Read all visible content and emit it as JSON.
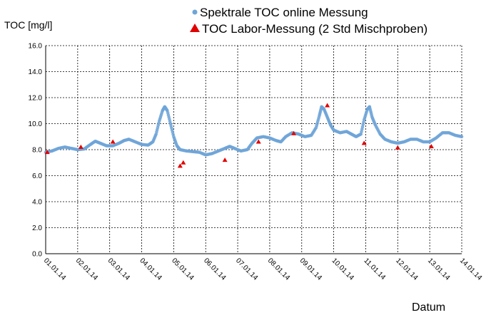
{
  "chart_data": {
    "type": "scatter",
    "ylabel": "TOC [mg/l]",
    "xlabel": "Datum",
    "ylim": [
      0,
      16
    ],
    "yticks": [
      "0.0",
      "2.0",
      "4.0",
      "6.0",
      "8.0",
      "10.0",
      "12.0",
      "14.0",
      "16.0"
    ],
    "xlim": [
      0,
      13
    ],
    "xticks": [
      "01.01.14",
      "02.01.14",
      "03.01.14",
      "04.01.14",
      "05.01.14",
      "06.01.14",
      "07.01.14",
      "08.01.14",
      "09.01.14",
      "10.01.14",
      "11.01.14",
      "12.01.14",
      "13.01.14",
      "14.01.14"
    ],
    "grid": true,
    "legend_position": "top",
    "series": [
      {
        "name": "Spektrale TOC online Messung",
        "marker": "circle",
        "color": "#6fa5d8",
        "points": [
          [
            0.0,
            7.8
          ],
          [
            0.2,
            7.9
          ],
          [
            0.4,
            8.1
          ],
          [
            0.6,
            8.2
          ],
          [
            0.8,
            8.1
          ],
          [
            1.0,
            8.0
          ],
          [
            1.2,
            8.05
          ],
          [
            1.4,
            8.4
          ],
          [
            1.55,
            8.65
          ],
          [
            1.7,
            8.5
          ],
          [
            1.9,
            8.3
          ],
          [
            2.1,
            8.3
          ],
          [
            2.3,
            8.5
          ],
          [
            2.45,
            8.7
          ],
          [
            2.6,
            8.8
          ],
          [
            2.8,
            8.6
          ],
          [
            3.0,
            8.4
          ],
          [
            3.2,
            8.35
          ],
          [
            3.35,
            8.6
          ],
          [
            3.45,
            9.2
          ],
          [
            3.55,
            10.2
          ],
          [
            3.65,
            11.0
          ],
          [
            3.72,
            11.3
          ],
          [
            3.8,
            11.0
          ],
          [
            3.9,
            10.0
          ],
          [
            4.0,
            9.0
          ],
          [
            4.1,
            8.3
          ],
          [
            4.2,
            8.0
          ],
          [
            4.4,
            7.9
          ],
          [
            4.6,
            7.85
          ],
          [
            4.8,
            7.8
          ],
          [
            5.0,
            7.6
          ],
          [
            5.2,
            7.7
          ],
          [
            5.4,
            7.9
          ],
          [
            5.6,
            8.1
          ],
          [
            5.75,
            8.25
          ],
          [
            5.9,
            8.1
          ],
          [
            6.1,
            7.9
          ],
          [
            6.3,
            8.0
          ],
          [
            6.45,
            8.5
          ],
          [
            6.6,
            8.9
          ],
          [
            6.8,
            9.0
          ],
          [
            7.0,
            8.9
          ],
          [
            7.2,
            8.7
          ],
          [
            7.35,
            8.6
          ],
          [
            7.5,
            9.0
          ],
          [
            7.7,
            9.3
          ],
          [
            7.9,
            9.2
          ],
          [
            8.1,
            9.0
          ],
          [
            8.3,
            9.1
          ],
          [
            8.45,
            9.7
          ],
          [
            8.55,
            10.6
          ],
          [
            8.62,
            11.3
          ],
          [
            8.7,
            11.1
          ],
          [
            8.8,
            10.5
          ],
          [
            8.9,
            9.9
          ],
          [
            9.0,
            9.5
          ],
          [
            9.2,
            9.3
          ],
          [
            9.4,
            9.4
          ],
          [
            9.55,
            9.2
          ],
          [
            9.7,
            9.0
          ],
          [
            9.85,
            9.2
          ],
          [
            9.95,
            10.3
          ],
          [
            10.05,
            11.1
          ],
          [
            10.12,
            11.3
          ],
          [
            10.2,
            10.5
          ],
          [
            10.3,
            9.9
          ],
          [
            10.45,
            9.2
          ],
          [
            10.6,
            8.8
          ],
          [
            10.8,
            8.6
          ],
          [
            11.0,
            8.5
          ],
          [
            11.2,
            8.6
          ],
          [
            11.4,
            8.8
          ],
          [
            11.6,
            8.8
          ],
          [
            11.8,
            8.6
          ],
          [
            12.0,
            8.6
          ],
          [
            12.2,
            8.9
          ],
          [
            12.4,
            9.3
          ],
          [
            12.6,
            9.3
          ],
          [
            12.8,
            9.1
          ],
          [
            13.0,
            9.0
          ]
        ]
      },
      {
        "name": "TOC Labor-Messung (2 Std Mischproben)",
        "marker": "triangle",
        "color": "#e00000",
        "points": [
          [
            0.05,
            7.8
          ],
          [
            1.1,
            8.2
          ],
          [
            2.1,
            8.6
          ],
          [
            4.2,
            6.75
          ],
          [
            4.3,
            7.0
          ],
          [
            5.6,
            7.2
          ],
          [
            6.65,
            8.6
          ],
          [
            7.75,
            9.25
          ],
          [
            8.8,
            11.4
          ],
          [
            9.95,
            8.5
          ],
          [
            11.0,
            8.15
          ],
          [
            12.05,
            8.25
          ]
        ]
      }
    ]
  }
}
